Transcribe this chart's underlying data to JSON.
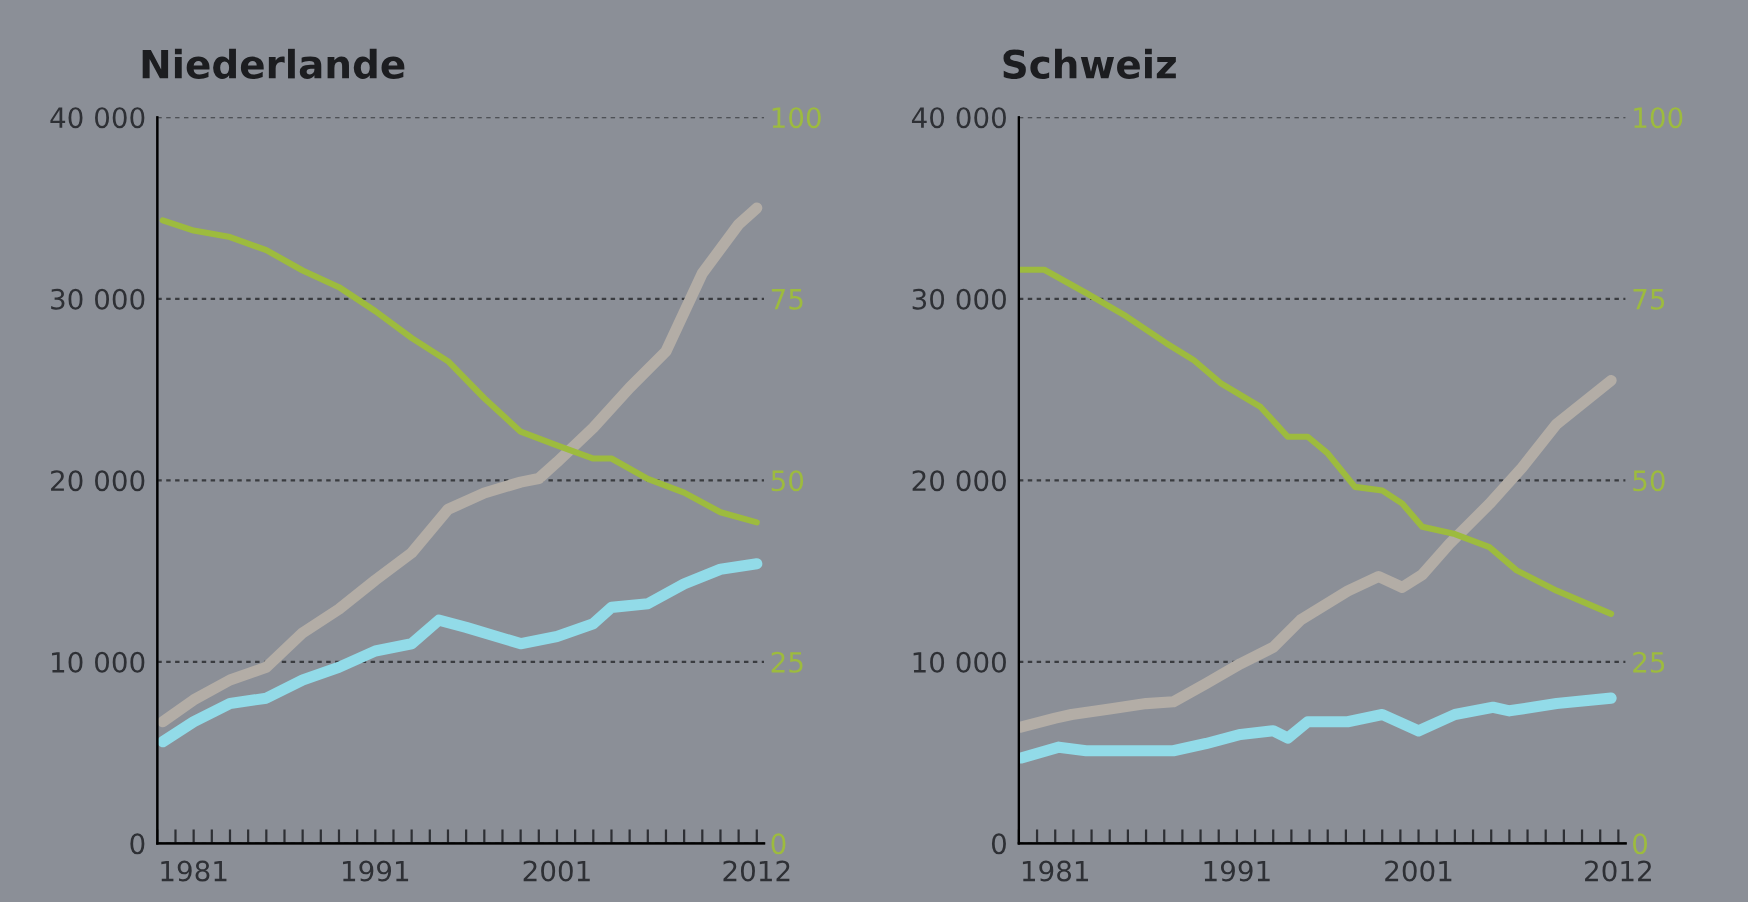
{
  "chart_data": [
    {
      "type": "line",
      "title": "Niederlande",
      "xlim": [
        1979,
        2012.4
      ],
      "ylim": [
        0,
        40000
      ],
      "y2lim": [
        0,
        100
      ],
      "xticks": [
        {
          "value": 1979,
          "label": null
        },
        {
          "value": 1980,
          "label": null
        },
        1981,
        {
          "value": 1982,
          "label": null
        },
        {
          "value": 1983,
          "label": null
        },
        {
          "value": 1984,
          "label": null
        },
        {
          "value": 1985,
          "label": null
        },
        {
          "value": 1986,
          "label": null
        },
        {
          "value": 1987,
          "label": null
        },
        {
          "value": 1988,
          "label": null
        },
        {
          "value": 1989,
          "label": null
        },
        {
          "value": 1990,
          "label": null
        },
        1991,
        {
          "value": 1992,
          "label": null
        },
        {
          "value": 1993,
          "label": null
        },
        {
          "value": 1994,
          "label": null
        },
        {
          "value": 1995,
          "label": null
        },
        {
          "value": 1996,
          "label": null
        },
        {
          "value": 1997,
          "label": null
        },
        {
          "value": 1998,
          "label": null
        },
        {
          "value": 1999,
          "label": null
        },
        {
          "value": 2000,
          "label": null
        },
        2001,
        {
          "value": 2002,
          "label": null
        },
        {
          "value": 2003,
          "label": null
        },
        {
          "value": 2004,
          "label": null
        },
        {
          "value": 2005,
          "label": null
        },
        {
          "value": 2006,
          "label": null
        },
        {
          "value": 2007,
          "label": null
        },
        {
          "value": 2008,
          "label": null
        },
        {
          "value": 2009,
          "label": null
        },
        {
          "value": 2010,
          "label": null
        },
        {
          "value": 2011,
          "label": null
        },
        2012
      ],
      "yticks": [
        0,
        {
          "value": 10000,
          "label": "10 000"
        },
        {
          "value": 20000,
          "label": "20 000"
        },
        {
          "value": 30000,
          "label": "30 000"
        },
        {
          "value": 40000,
          "label": "40 000"
        }
      ],
      "y2ticks": [
        0,
        25,
        50,
        75,
        100
      ],
      "grid": "y",
      "line_style": "solid",
      "series": [
        {
          "color": "#b3ada6",
          "x": [
            1979.3,
            1981,
            1983,
            1985,
            1987,
            1989,
            1991,
            1993,
            1995,
            1997,
            1999,
            2000,
            2001,
            2003,
            2005,
            2007,
            2009,
            2011,
            2012
          ],
          "values": [
            6700,
            7900,
            9000,
            9700,
            11600,
            12900,
            14500,
            16000,
            18400,
            19300,
            19900,
            20100,
            21000,
            22900,
            25100,
            27100,
            31400,
            34100,
            35000
          ]
        },
        {
          "color": "#92dbe8",
          "x": [
            1979.3,
            1981,
            1983,
            1985,
            1987,
            1989,
            1991,
            1993,
            1994.5,
            1996,
            1999,
            2001,
            2003,
            2004,
            2006,
            2008,
            2010,
            2012
          ],
          "values": [
            5600,
            6700,
            7700,
            8000,
            9000,
            9700,
            10600,
            11000,
            12300,
            11900,
            11000,
            11400,
            12100,
            13000,
            13200,
            14300,
            15100,
            15400
          ]
        },
        {
          "color": "#9dbb3e",
          "axis": "y2",
          "x": [
            1979.3,
            1981,
            1983,
            1985,
            1987,
            1989,
            1991,
            1993,
            1995,
            1997,
            1999,
            2001,
            2003,
            2004,
            2006,
            2008,
            2010,
            2012
          ],
          "values": [
            85.8,
            84.4,
            83.5,
            81.7,
            78.9,
            76.6,
            73.3,
            69.6,
            66.4,
            61.3,
            56.7,
            54.8,
            53.0,
            53.0,
            50.2,
            48.3,
            45.6,
            44.2
          ]
        }
      ]
    },
    {
      "type": "line",
      "title": "Schweiz",
      "xlim": [
        1979,
        2012.4
      ],
      "ylim": [
        0,
        40000
      ],
      "y2lim": [
        0,
        100
      ],
      "xticks": [
        {
          "value": 1979,
          "label": null
        },
        {
          "value": 1980,
          "label": null
        },
        1981,
        {
          "value": 1982,
          "label": null
        },
        {
          "value": 1983,
          "label": null
        },
        {
          "value": 1984,
          "label": null
        },
        {
          "value": 1985,
          "label": null
        },
        {
          "value": 1986,
          "label": null
        },
        {
          "value": 1987,
          "label": null
        },
        {
          "value": 1988,
          "label": null
        },
        {
          "value": 1989,
          "label": null
        },
        {
          "value": 1990,
          "label": null
        },
        1991,
        {
          "value": 1992,
          "label": null
        },
        {
          "value": 1993,
          "label": null
        },
        {
          "value": 1994,
          "label": null
        },
        {
          "value": 1995,
          "label": null
        },
        {
          "value": 1996,
          "label": null
        },
        {
          "value": 1997,
          "label": null
        },
        {
          "value": 1998,
          "label": null
        },
        {
          "value": 1999,
          "label": null
        },
        {
          "value": 2000,
          "label": null
        },
        2001,
        {
          "value": 2002,
          "label": null
        },
        {
          "value": 2003,
          "label": null
        },
        {
          "value": 2004,
          "label": null
        },
        {
          "value": 2005,
          "label": null
        },
        {
          "value": 2006,
          "label": null
        },
        {
          "value": 2007,
          "label": null
        },
        {
          "value": 2008,
          "label": null
        },
        {
          "value": 2009,
          "label": null
        },
        {
          "value": 2010,
          "label": null
        },
        {
          "value": 2011,
          "label": null
        },
        2012
      ],
      "yticks": [
        0,
        {
          "value": 10000,
          "label": "10 000"
        },
        {
          "value": 20000,
          "label": "20 000"
        },
        {
          "value": 30000,
          "label": "30 000"
        },
        {
          "value": 40000,
          "label": "40 000"
        }
      ],
      "y2ticks": [
        0,
        25,
        50,
        75,
        100
      ],
      "grid": "y",
      "line_style": "solid",
      "series": [
        {
          "color": "#b3ada6",
          "x": [
            1979.1,
            1981,
            1981.9,
            1984,
            1986,
            1987.5,
            1989.3,
            1991.2,
            1993,
            1994.5,
            1997.1,
            1998.8,
            2000.1,
            2001.2,
            2002.7,
            2004.9,
            2006.7,
            2008.6,
            2011.6
          ],
          "values": [
            6400,
            6900,
            7100,
            7400,
            7700,
            7800,
            8800,
            9900,
            10800,
            12300,
            13900,
            14700,
            14100,
            14800,
            16500,
            18700,
            20700,
            23100,
            25500
          ]
        },
        {
          "color": "#92dbe8",
          "x": [
            1979.1,
            1981.2,
            1982.7,
            1987.5,
            1989.3,
            1991.2,
            1993,
            1993.8,
            1994.9,
            1997.1,
            1999,
            2001,
            2003,
            2005.1,
            2006,
            2008.6,
            2011.6
          ],
          "values": [
            4700,
            5300,
            5100,
            5100,
            5500,
            6000,
            6200,
            5800,
            6700,
            6700,
            7100,
            6200,
            7100,
            7500,
            7300,
            7700,
            8000
          ]
        },
        {
          "color": "#9dbb3e",
          "axis": "y2",
          "x": [
            1979.1,
            1980.4,
            1982.7,
            1984.9,
            1987.1,
            1988.6,
            1990.1,
            1992.3,
            1993.8,
            1994.9,
            1996,
            1997.5,
            1999,
            2000.1,
            2001.2,
            2003,
            2004.9,
            2006.4,
            2008.6,
            2011.6
          ],
          "values": [
            79.0,
            79.0,
            75.8,
            72.6,
            68.9,
            66.6,
            63.4,
            60.1,
            56.0,
            56.0,
            53.7,
            49.1,
            48.6,
            46.8,
            43.6,
            42.6,
            40.8,
            37.6,
            34.8,
            31.6
          ]
        }
      ]
    }
  ]
}
